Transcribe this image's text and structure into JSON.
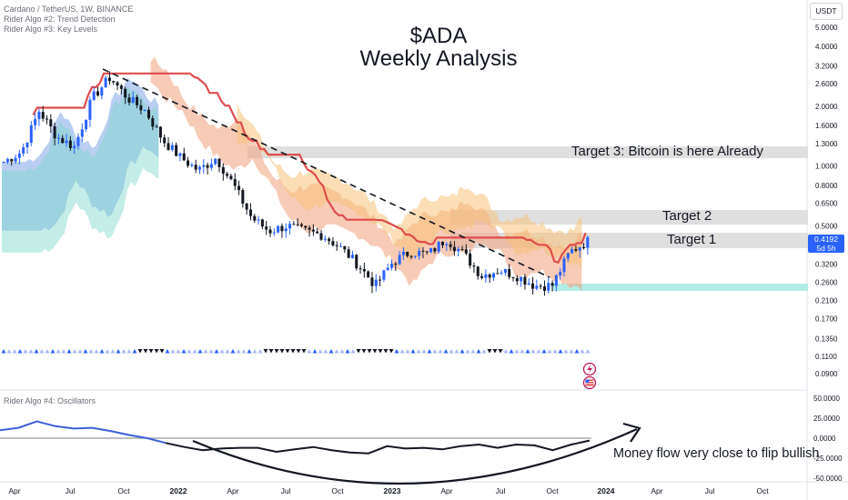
{
  "header": {
    "symbol_line": "Cardano / TetherUS, 1W, BINANCE",
    "indicator_2": "Rider Algo #2: Trend Detection",
    "indicator_3": "Rider Algo #3: Key Levels",
    "title": "$ADA",
    "subtitle": "Weekly Analysis",
    "currency_button": "USDT"
  },
  "price_tag": {
    "price": "0.4192",
    "countdown": "5d 5h"
  },
  "oscillator": {
    "title": "Rider Algo #4: Oscillators",
    "annotation": "Money flow very close to flip bullish"
  },
  "colors": {
    "up_candle": "#2962ff",
    "down_candle": "#131722",
    "red_line": "#e04c4c",
    "trendline": "#131722",
    "target_zone": "#d9d9d9",
    "support_zone": "#b2ece6",
    "oscillator_line": "#3d5fd8"
  },
  "chart_data": [
    {
      "type": "candlestick",
      "title": "$ADA Weekly Analysis",
      "timeframe": "1W",
      "x_ticks": [
        "Apr",
        "Jul",
        "Oct",
        "2022",
        "Apr",
        "Jul",
        "Oct",
        "2023",
        "Apr",
        "Jul",
        "Oct",
        "2024",
        "Apr",
        "Jul",
        "Oct"
      ],
      "y_scale": "log",
      "y_ticks": [
        "5.0000",
        "4.0000",
        "3.2000",
        "2.6000",
        "2.0000",
        "1.6000",
        "1.3000",
        "1.0000",
        "0.8000",
        "0.6500",
        "0.5000",
        "0.3200",
        "0.2600",
        "0.2100",
        "0.1700",
        "0.1350",
        "0.1100",
        "0.0900"
      ],
      "ylim": [
        0.08,
        5.5
      ],
      "last_price": 0.4192,
      "close_series": [
        {
          "t": "2021-03",
          "c": 1.05
        },
        {
          "t": "2021-04",
          "c": 1.18
        },
        {
          "t": "2021-05",
          "c": 1.9
        },
        {
          "t": "2021-06",
          "c": 1.4
        },
        {
          "t": "2021-07",
          "c": 1.25
        },
        {
          "t": "2021-08",
          "c": 2.2
        },
        {
          "t": "2021-09",
          "c": 2.8
        },
        {
          "t": "2021-10",
          "c": 2.2
        },
        {
          "t": "2021-11",
          "c": 1.9
        },
        {
          "t": "2021-12",
          "c": 1.35
        },
        {
          "t": "2022-01",
          "c": 1.1
        },
        {
          "t": "2022-02",
          "c": 0.95
        },
        {
          "t": "2022-03",
          "c": 1.1
        },
        {
          "t": "2022-04",
          "c": 0.8
        },
        {
          "t": "2022-05",
          "c": 0.55
        },
        {
          "t": "2022-06",
          "c": 0.47
        },
        {
          "t": "2022-07",
          "c": 0.5
        },
        {
          "t": "2022-08",
          "c": 0.47
        },
        {
          "t": "2022-09",
          "c": 0.45
        },
        {
          "t": "2022-10",
          "c": 0.39
        },
        {
          "t": "2022-11",
          "c": 0.32
        },
        {
          "t": "2022-12",
          "c": 0.25
        },
        {
          "t": "2023-01",
          "c": 0.33
        },
        {
          "t": "2023-02",
          "c": 0.37
        },
        {
          "t": "2023-03",
          "c": 0.36
        },
        {
          "t": "2023-04",
          "c": 0.43
        },
        {
          "t": "2023-05",
          "c": 0.36
        },
        {
          "t": "2023-06",
          "c": 0.28
        },
        {
          "t": "2023-07",
          "c": 0.3
        },
        {
          "t": "2023-08",
          "c": 0.28
        },
        {
          "t": "2023-09",
          "c": 0.25
        },
        {
          "t": "2023-10",
          "c": 0.25
        },
        {
          "t": "2023-11",
          "c": 0.37
        },
        {
          "t": "2023-12",
          "c": 0.4192
        }
      ],
      "zones": [
        {
          "label": "Target 3: Bitcoin is here Already",
          "low": 1.12,
          "high": 1.26
        },
        {
          "label": "Target 2",
          "low": 0.5,
          "high": 0.59
        },
        {
          "label": "Target 1",
          "low": 0.37,
          "high": 0.44
        },
        {
          "label": "",
          "low": 0.245,
          "high": 0.26
        }
      ]
    },
    {
      "type": "line",
      "title": "Rider Algo #4: Oscillators",
      "y_ticks": [
        "50.0000",
        "25.0000",
        "0.0000",
        "-25.0000",
        "-50.0000"
      ],
      "ylim": [
        -55,
        55
      ],
      "series": [
        {
          "values": [
            10,
            13,
            21,
            15,
            12,
            13,
            9,
            4,
            0,
            -6,
            -11,
            -15,
            -13,
            -12,
            -12,
            -17,
            -14,
            -11,
            -15,
            -18,
            -19,
            -10,
            -13,
            -12,
            -14,
            -10,
            -8,
            -12,
            -8,
            -9,
            -15,
            -8,
            -3
          ]
        }
      ]
    }
  ]
}
